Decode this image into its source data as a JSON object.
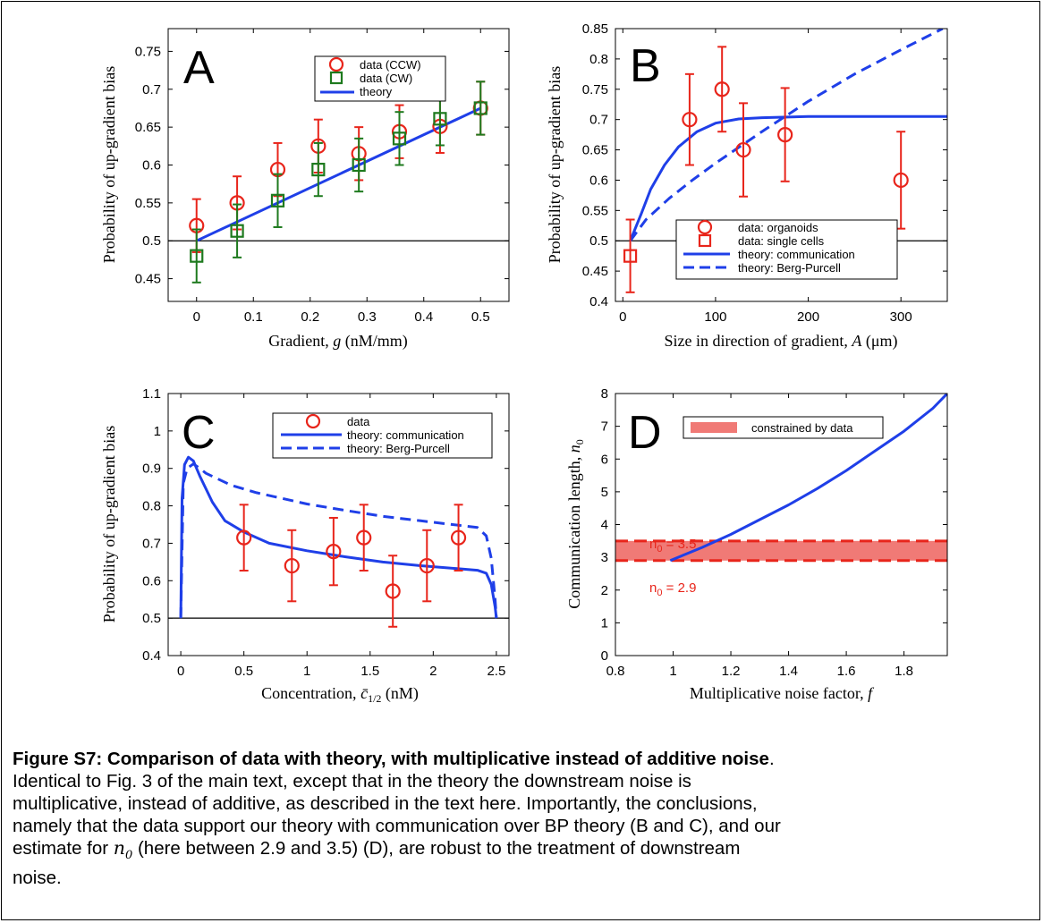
{
  "colors": {
    "data": "#e8251b",
    "cw": "#1e7a1e",
    "theory": "#1f3fe8",
    "band": "#f07a76",
    "bandline": "#e8251b"
  },
  "chart_data": [
    {
      "type": "scatter",
      "panel": "A",
      "xlabel": "Gradient, g (nM/mm)",
      "ylabel": "Probability of up-gradient bias",
      "xlim": [
        -0.05,
        0.55
      ],
      "ylim": [
        0.42,
        0.78
      ],
      "xticks": [
        0,
        0.1,
        0.2,
        0.3,
        0.4,
        0.5
      ],
      "xticklabels": [
        "0",
        "0.1",
        "0.2",
        "0.3",
        "0.4",
        "0.5"
      ],
      "yticks": [
        0.45,
        0.5,
        0.55,
        0.6,
        0.65,
        0.7,
        0.75
      ],
      "yticklabels": [
        "0.45",
        "0.5",
        "0.55",
        "0.6",
        "0.65",
        "0.7",
        "0.75"
      ],
      "legend": {
        "position": "top-right",
        "entries": [
          "data (CCW)",
          "data (CW)",
          "theory"
        ]
      },
      "hline": 0.5,
      "series": [
        {
          "name": "data (CCW)",
          "marker": "circle",
          "color": "#e8251b",
          "x": [
            0,
            0.0714,
            0.1429,
            0.2143,
            0.2857,
            0.3571,
            0.4286,
            0.5
          ],
          "y": [
            0.52,
            0.55,
            0.594,
            0.625,
            0.615,
            0.644,
            0.651,
            0.675
          ],
          "err": [
            0.035,
            0.035,
            0.035,
            0.035,
            0.035,
            0.035,
            0.035,
            0.035
          ]
        },
        {
          "name": "data (CW)",
          "marker": "square",
          "color": "#1e7a1e",
          "x": [
            0,
            0.0714,
            0.1429,
            0.2143,
            0.2857,
            0.3571,
            0.4286,
            0.5
          ],
          "y": [
            0.48,
            0.513,
            0.553,
            0.594,
            0.6,
            0.635,
            0.661,
            0.675
          ],
          "err": [
            0.035,
            0.035,
            0.035,
            0.035,
            0.035,
            0.035,
            0.035,
            0.035
          ]
        },
        {
          "name": "theory",
          "style": "solid",
          "color": "#1f3fe8",
          "x": [
            0,
            0.5
          ],
          "y": [
            0.5,
            0.675
          ]
        }
      ]
    },
    {
      "type": "scatter",
      "panel": "B",
      "xlabel": "Size in direction of gradient, A (μm)",
      "ylabel": "Probability of up-gradient bias",
      "xlim": [
        -8,
        350
      ],
      "ylim": [
        0.4,
        0.85
      ],
      "xticks": [
        0,
        100,
        200,
        300
      ],
      "xticklabels": [
        "0",
        "100",
        "200",
        "300"
      ],
      "yticks": [
        0.4,
        0.45,
        0.5,
        0.55,
        0.6,
        0.65,
        0.7,
        0.75,
        0.8,
        0.85
      ],
      "yticklabels": [
        "0.4",
        "0.45",
        "0.5",
        "0.55",
        "0.6",
        "0.65",
        "0.7",
        "0.75",
        "0.8",
        "0.85"
      ],
      "legend": {
        "position": "bottom-right",
        "entries": [
          "data: organoids",
          "data: single cells",
          "theory: communication",
          "theory: Berg-Purcell"
        ]
      },
      "hline": 0.5,
      "series": [
        {
          "name": "data: organoids",
          "marker": "circle",
          "color": "#e8251b",
          "x": [
            72,
            107,
            130,
            175,
            300
          ],
          "y": [
            0.7,
            0.75,
            0.65,
            0.675,
            0.6
          ],
          "err": [
            0.075,
            0.07,
            0.077,
            0.077,
            0.08
          ]
        },
        {
          "name": "data: single cells",
          "marker": "square",
          "color": "#e8251b",
          "x": [
            8
          ],
          "y": [
            0.475
          ],
          "err": [
            0.06
          ]
        },
        {
          "name": "theory: communication",
          "style": "solid",
          "color": "#1f3fe8",
          "x": [
            8,
            20,
            30,
            45,
            60,
            80,
            100,
            125,
            150,
            200,
            250,
            350
          ],
          "y": [
            0.5,
            0.545,
            0.585,
            0.625,
            0.655,
            0.68,
            0.694,
            0.701,
            0.703,
            0.705,
            0.705,
            0.705
          ]
        },
        {
          "name": "theory: Berg-Purcell",
          "style": "dashed",
          "color": "#1f3fe8",
          "x": [
            8,
            25,
            50,
            75,
            100,
            150,
            200,
            250,
            300,
            345
          ],
          "y": [
            0.5,
            0.535,
            0.57,
            0.6,
            0.628,
            0.68,
            0.73,
            0.775,
            0.815,
            0.85
          ]
        }
      ]
    },
    {
      "type": "scatter",
      "panel": "C",
      "xlabel": "Concentration, c̄1/2 (nM)",
      "ylabel": "Probability of up-gradient bias",
      "xlim": [
        -0.1,
        2.6
      ],
      "ylim": [
        0.4,
        1.1
      ],
      "xticks": [
        0,
        0.5,
        1,
        1.5,
        2,
        2.5
      ],
      "xticklabels": [
        "0",
        "0.5",
        "1",
        "1.5",
        "2",
        "2.5"
      ],
      "yticks": [
        0.4,
        0.5,
        0.6,
        0.7,
        0.8,
        0.9,
        1,
        1.1
      ],
      "yticklabels": [
        "0.4",
        "0.5",
        "0.6",
        "0.7",
        "0.8",
        "0.9",
        "1",
        "1.1"
      ],
      "legend": {
        "position": "top-right",
        "entries": [
          "data",
          "theory: communication",
          "theory: Berg-Purcell"
        ]
      },
      "hline": 0.5,
      "series": [
        {
          "name": "data",
          "marker": "circle",
          "color": "#e8251b",
          "x": [
            0.5,
            0.88,
            1.21,
            1.45,
            1.68,
            1.95,
            2.2
          ],
          "y": [
            0.715,
            0.64,
            0.678,
            0.715,
            0.572,
            0.64,
            0.715
          ],
          "err": [
            0.088,
            0.095,
            0.09,
            0.088,
            0.095,
            0.095,
            0.088
          ]
        },
        {
          "name": "theory: communication",
          "style": "solid",
          "color": "#1f3fe8",
          "x": [
            0,
            0.01,
            0.03,
            0.06,
            0.1,
            0.15,
            0.25,
            0.35,
            0.5,
            0.7,
            1.0,
            1.3,
            1.6,
            1.9,
            2.2,
            2.35,
            2.42,
            2.46,
            2.49,
            2.5
          ],
          "y": [
            0.5,
            0.82,
            0.91,
            0.93,
            0.92,
            0.88,
            0.81,
            0.76,
            0.73,
            0.7,
            0.68,
            0.664,
            0.65,
            0.64,
            0.632,
            0.628,
            0.62,
            0.59,
            0.53,
            0.5
          ]
        },
        {
          "name": "theory: Berg-Purcell",
          "style": "dashed",
          "color": "#1f3fe8",
          "x": [
            0,
            0.02,
            0.05,
            0.1,
            0.15,
            0.2,
            0.4,
            0.6,
            0.8,
            1.0,
            1.3,
            1.6,
            1.9,
            2.2,
            2.35,
            2.42,
            2.46,
            2.49,
            2.5
          ],
          "y": [
            0.5,
            0.86,
            0.9,
            0.912,
            0.9,
            0.887,
            0.855,
            0.835,
            0.82,
            0.805,
            0.788,
            0.772,
            0.76,
            0.748,
            0.742,
            0.72,
            0.66,
            0.55,
            0.5
          ]
        }
      ]
    },
    {
      "type": "line",
      "panel": "D",
      "xlabel": "Multiplicative noise factor, f",
      "ylabel": "Communication length, n0",
      "xlim": [
        0.8,
        1.95
      ],
      "ylim": [
        0,
        8
      ],
      "xticks": [
        0.8,
        1,
        1.2,
        1.4,
        1.6,
        1.8
      ],
      "xticklabels": [
        "0.8",
        "1",
        "1.2",
        "1.4",
        "1.6",
        "1.8"
      ],
      "yticks": [
        0,
        1,
        2,
        3,
        4,
        5,
        6,
        7,
        8
      ],
      "yticklabels": [
        "0",
        "1",
        "2",
        "3",
        "4",
        "5",
        "6",
        "7",
        "8"
      ],
      "legend": {
        "position": "top-right",
        "entries": [
          "constrained by data"
        ]
      },
      "band": {
        "name": "constrained by data",
        "ymin": 2.9,
        "ymax": 3.5
      },
      "annotations": [
        "n0 = 3.5",
        "n0 = 2.9"
      ],
      "series": [
        {
          "name": "theory",
          "style": "solid",
          "color": "#1f3fe8",
          "x": [
            0.99,
            1.1,
            1.2,
            1.3,
            1.4,
            1.5,
            1.6,
            1.7,
            1.8,
            1.9,
            1.95
          ],
          "y": [
            2.9,
            3.3,
            3.7,
            4.15,
            4.6,
            5.1,
            5.65,
            6.25,
            6.85,
            7.55,
            8.0
          ]
        }
      ]
    }
  ],
  "panel_text": {
    "a": {
      "letter": "A",
      "ylabel": "Probability of up-gradient bias",
      "xlabel_pre": "Gradient, ",
      "xlabel_var": "g",
      "xlabel_post": " (nM/mm)",
      "legend": [
        "data (CCW)",
        "data (CW)",
        "theory"
      ]
    },
    "b": {
      "letter": "B",
      "ylabel": "Probability of up-gradient bias",
      "xlabel_pre": "Size in direction of gradient, ",
      "xlabel_var": "A",
      "xlabel_post": " (μm)",
      "legend": [
        "data: organoids",
        "data: single cells",
        "theory: communication",
        "theory: Berg-Purcell"
      ]
    },
    "c": {
      "letter": "C",
      "ylabel": "Probability of up-gradient bias",
      "xlabel_pre": "Concentration, ",
      "xlabel_var": "c̄",
      "xlabel_sub": "1/2",
      "xlabel_post": " (nM)",
      "legend": [
        "data",
        "theory: communication",
        "theory: Berg-Purcell"
      ]
    },
    "d": {
      "letter": "D",
      "ylabel_pre": "Communication length, ",
      "ylabel_var": "n",
      "ylabel_sub": "0",
      "xlabel_pre": "Multiplicative noise factor, ",
      "xlabel_var": "f",
      "xlabel_post": "",
      "legend": [
        "constrained by data"
      ],
      "annot_hi_pre": "n",
      "annot_hi_sub": "0",
      "annot_hi_post": " = 3.5",
      "annot_lo_pre": "n",
      "annot_lo_sub": "0",
      "annot_lo_post": " = 2.9"
    }
  },
  "caption": {
    "title": "Figure S7: Comparison of data with theory, with multiplicative instead of additive noise",
    "title_end": ".",
    "line1": "Identical to Fig. 3 of the main text, except that in the theory the downstream noise is",
    "line2": "multiplicative, instead of additive, as described in the text here. Importantly, the conclusions,",
    "line3": "namely that the data support our theory with communication over BP theory (B and C), and our",
    "line4_pre": "estimate for ",
    "line4_sym": "n",
    "line4_sub": "0",
    "line4_post": "  (here between 2.9 and 3.5) (D), are robust to the treatment of downstream",
    "line5": "noise."
  }
}
